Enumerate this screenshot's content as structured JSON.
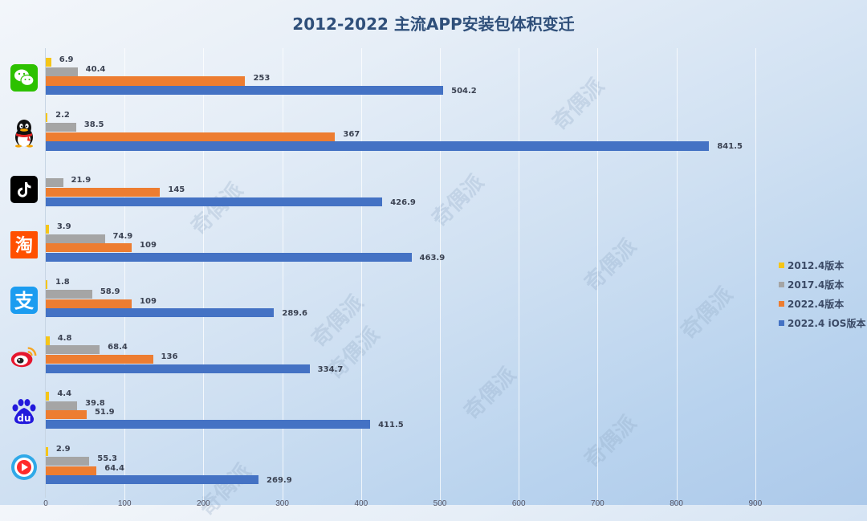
{
  "title": "2012-2022 主流APP安装包体积变迁",
  "legend": [
    {
      "label": "2012.4版本",
      "color": "#f5c518"
    },
    {
      "label": "2017.4版本",
      "color": "#a5a5a5"
    },
    {
      "label": "2022.4版本",
      "color": "#ed7d31"
    },
    {
      "label": "2022.4 iOS版本",
      "color": "#4472c4"
    }
  ],
  "x_ticks": [
    "0",
    "100",
    "200",
    "300",
    "400",
    "500",
    "600",
    "700",
    "800",
    "900"
  ],
  "apps": [
    {
      "name": "wechat",
      "icon": "wechat-icon",
      "values": [
        "6.9",
        "40.4",
        "253",
        "504.2"
      ]
    },
    {
      "name": "qq",
      "icon": "qq-penguin-icon",
      "values": [
        "2.2",
        "38.5",
        "367",
        "841.5"
      ]
    },
    {
      "name": "douyin",
      "icon": "douyin-icon",
      "values": [
        "",
        "21.9",
        "145",
        "426.9"
      ]
    },
    {
      "name": "taobao",
      "icon": "taobao-icon",
      "values": [
        "3.9",
        "74.9",
        "109",
        "463.9"
      ]
    },
    {
      "name": "alipay",
      "icon": "alipay-icon",
      "values": [
        "1.8",
        "58.9",
        "109",
        "289.6"
      ]
    },
    {
      "name": "weibo",
      "icon": "weibo-icon",
      "values": [
        "4.8",
        "68.4",
        "136",
        "334.7"
      ]
    },
    {
      "name": "baidu",
      "icon": "baidu-icon",
      "values": [
        "4.4",
        "39.8",
        "51.9",
        "411.5"
      ]
    },
    {
      "name": "youku",
      "icon": "video-play-icon",
      "values": [
        "2.9",
        "55.3",
        "64.4",
        "269.9"
      ]
    }
  ],
  "icon_text": {
    "taobao": "淘",
    "alipay": "支",
    "baidu": "du"
  },
  "watermark": "奇偶派",
  "chart_data": {
    "type": "bar",
    "orientation": "horizontal",
    "title": "2012-2022 主流APP安装包体积变迁",
    "categories": [
      "微信",
      "QQ",
      "抖音",
      "淘宝",
      "支付宝",
      "微博",
      "百度",
      "优酷"
    ],
    "series": [
      {
        "name": "2012.4版本",
        "color": "#f5c518",
        "values": [
          6.9,
          2.2,
          null,
          3.9,
          1.8,
          4.8,
          4.4,
          2.9
        ]
      },
      {
        "name": "2017.4版本",
        "color": "#a5a5a5",
        "values": [
          40.4,
          38.5,
          21.9,
          74.9,
          58.9,
          68.4,
          39.8,
          55.3
        ]
      },
      {
        "name": "2022.4版本",
        "color": "#ed7d31",
        "values": [
          253,
          367,
          145,
          109,
          109,
          136,
          51.9,
          64.4
        ]
      },
      {
        "name": "2022.4 iOS版本",
        "color": "#4472c4",
        "values": [
          504.2,
          841.5,
          426.9,
          463.9,
          289.6,
          334.7,
          411.5,
          269.9
        ]
      }
    ],
    "xlabel": "",
    "ylabel": "",
    "xlim": [
      0,
      900
    ],
    "x_ticks": [
      0,
      100,
      200,
      300,
      400,
      500,
      600,
      700,
      800,
      900
    ],
    "grid": true,
    "legend_position": "right"
  }
}
